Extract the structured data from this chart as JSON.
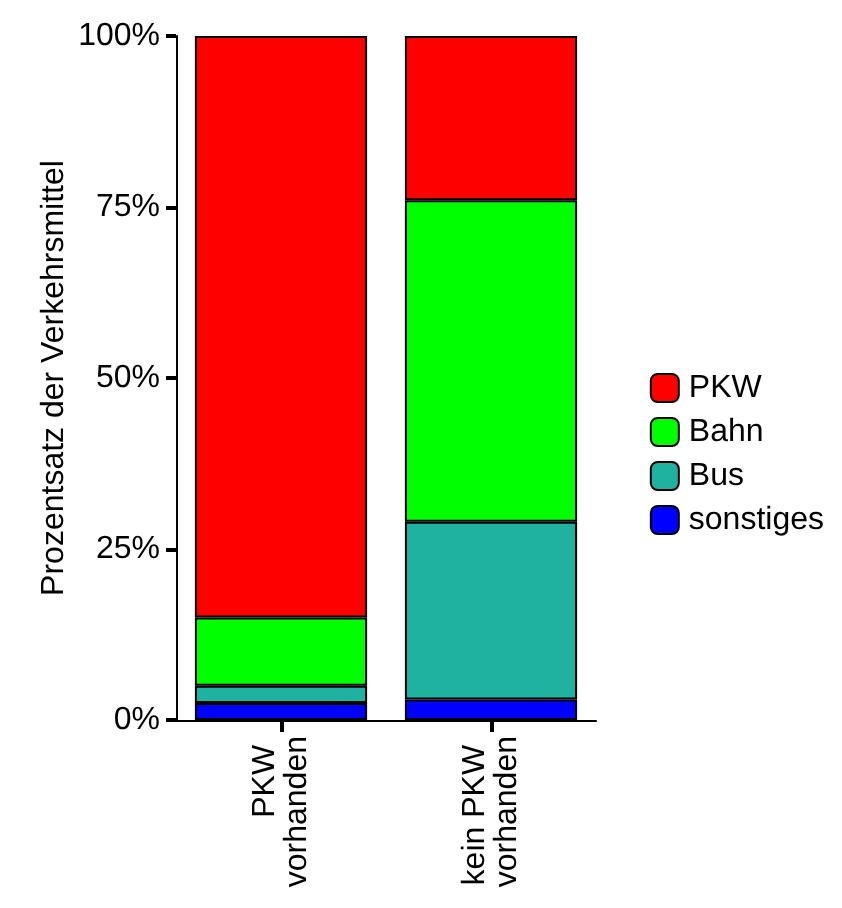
{
  "chart_data": {
    "type": "bar",
    "stacked": true,
    "ylabel": "Prozentsatz der Verkehrsmittel",
    "categories": [
      "PKW vorhanden",
      "kein PKW vorhanden"
    ],
    "series": [
      {
        "name": "sonstiges",
        "color": "#0000ff",
        "values": [
          2.5,
          3
        ]
      },
      {
        "name": "Bus",
        "color": "#20b2a0",
        "values": [
          2.5,
          26
        ]
      },
      {
        "name": "Bahn",
        "color": "#00ff00",
        "values": [
          10,
          47
        ]
      },
      {
        "name": "PKW",
        "color": "#ff0000",
        "values": [
          85,
          24
        ]
      }
    ],
    "ylim": [
      0,
      100
    ],
    "yticks": [
      {
        "value": 0,
        "label": "0%"
      },
      {
        "value": 25,
        "label": "25%"
      },
      {
        "value": 50,
        "label": "50%"
      },
      {
        "value": 75,
        "label": "75%"
      },
      {
        "value": 100,
        "label": "100%"
      }
    ],
    "grid": false,
    "legend": "right"
  }
}
